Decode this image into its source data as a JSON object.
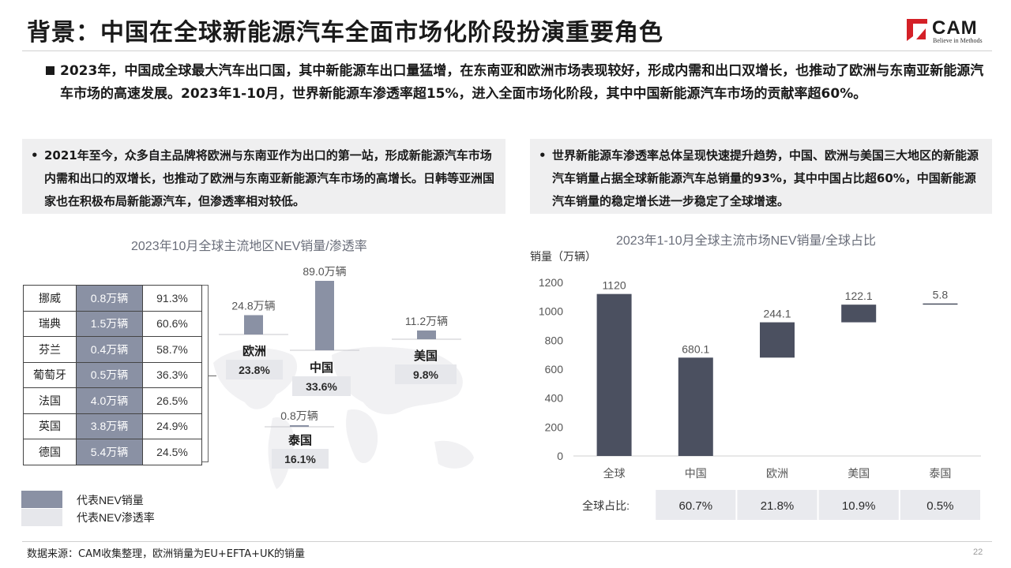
{
  "title": "背景：中国在全球新能源汽车全面市场化阶段扮演重要角色",
  "logo": {
    "text": "CAM",
    "slogan": "Believe in Methods",
    "accent": "#d42027"
  },
  "intro": "2023年，中国成全球最大汽车出口国，其中新能源车出口量猛增，在东南亚和欧洲市场表现较好，形成内需和出口双增长，也推动了欧洲与东南亚新能源汽车市场的高速发展。2023年1-10月，世界新能源车渗透率超15%，进入全面市场化阶段，其中中国新能源汽车市场的贡献率超60%。",
  "panels": {
    "left": "2021年至今，众多自主品牌将欧洲与东南亚作为出口的第一站，形成新能源汽车市场内需和出口的双增长，也推动了欧洲与东南亚新能源汽车市场的高增长。日韩等亚洲国家也在积极布局新能源汽车，但渗透率相对较低。",
    "right": "世界新能源车渗透率总体呈现快速提升趋势，中国、欧洲与美国三大地区的新能源汽车销量占据全球新能源汽车总销量的93%，其中中国占比超60%，中国新能源汽车销量的稳定增长进一步稳定了全球增速。"
  },
  "colors": {
    "sales": "#8a91a4",
    "penetration": "#e6e7eb",
    "bar_dark": "#4b5060",
    "table_bg": "#e9eaee",
    "title_gray": "#6a6e7a"
  },
  "chart_data": [
    {
      "type": "bar",
      "title": "2023年10月全球主流地区NEV销量/渗透率",
      "categories": [
        "欧洲",
        "中国",
        "美国",
        "泰国"
      ],
      "series": [
        {
          "name": "代表NEV销量",
          "values": [
            24.8,
            89.0,
            11.2,
            0.8
          ],
          "labels": [
            "24.8万辆",
            "89.0万辆",
            "11.2万辆",
            "0.8万辆"
          ]
        },
        {
          "name": "代表NEV渗透率",
          "values": [
            23.8,
            33.6,
            9.8,
            16.1
          ],
          "labels": [
            "23.8%",
            "33.6%",
            "9.8%",
            "16.1%"
          ]
        }
      ],
      "table": {
        "countries": [
          "挪威",
          "瑞典",
          "芬兰",
          "葡萄牙",
          "法国",
          "英国",
          "德国"
        ],
        "sales": [
          "0.8万辆",
          "1.5万辆",
          "0.4万辆",
          "0.5万辆",
          "4.0万辆",
          "3.8万辆",
          "5.4万辆"
        ],
        "penetration": [
          "91.3%",
          "60.6%",
          "58.7%",
          "36.3%",
          "26.5%",
          "24.9%",
          "24.5%"
        ]
      },
      "legend": [
        "代表NEV销量",
        "代表NEV渗透率"
      ]
    },
    {
      "type": "bar",
      "title": "2023年1-10月全球主流市场NEV销量/全球占比",
      "ylabel": "销量（万辆）",
      "categories": [
        "全球",
        "中国",
        "欧洲",
        "美国",
        "泰国"
      ],
      "values": [
        1120,
        680.1,
        244.1,
        122.1,
        5.8
      ],
      "value_labels": [
        "1120",
        "680.1",
        "244.1",
        "122.1",
        "5.8"
      ],
      "waterfall": true,
      "ylim": [
        0,
        1200
      ],
      "yticks": [
        "0",
        "200",
        "400",
        "600",
        "800",
        "1000",
        "1200"
      ],
      "share_label": "全球占比:",
      "shares": [
        "60.7%",
        "21.8%",
        "10.9%",
        "0.5%"
      ]
    }
  ],
  "footer": {
    "source": "数据来源：CAM收集整理，欧洲销量为EU+EFTA+UK的销量",
    "page": "22"
  }
}
